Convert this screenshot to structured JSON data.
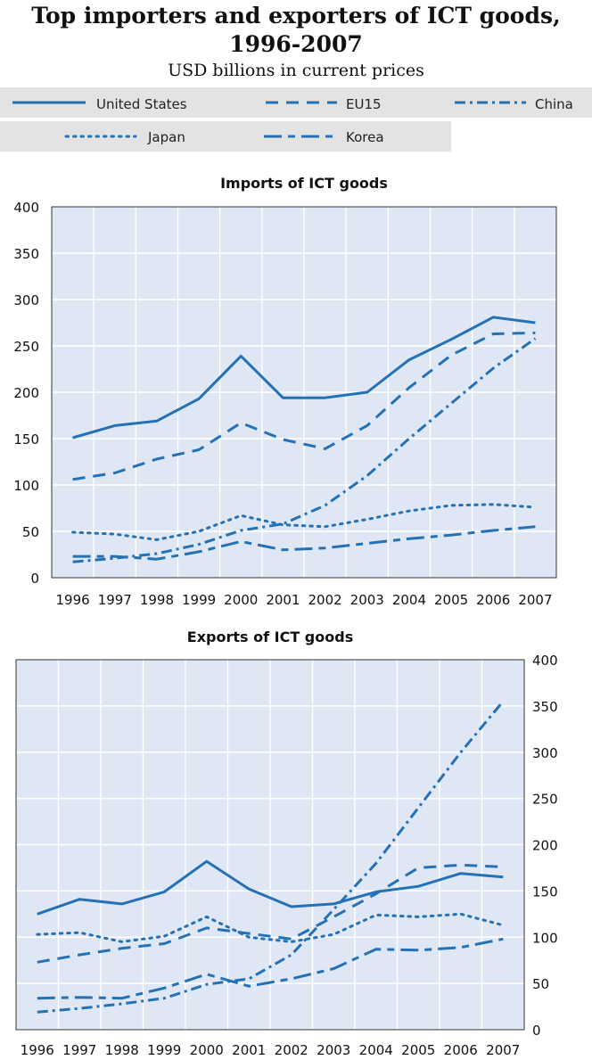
{
  "header": {
    "title_line1": "Top importers and exporters of ICT goods,",
    "title_line2": "1996-2007",
    "subtitle": "USD billions in current prices"
  },
  "style": {
    "series_color": "#2471b5",
    "plot_background": "#dfe7f5",
    "grid_color": "#ffffff",
    "legend_background": "#e3e3e3"
  },
  "legend": [
    {
      "label": "United States",
      "dash": "solid"
    },
    {
      "label": "EU15",
      "dash": "dash"
    },
    {
      "label": "China",
      "dash": "dashdot"
    },
    {
      "label": "Japan",
      "dash": "dot"
    },
    {
      "label": "Korea",
      "dash": "longdash"
    }
  ],
  "chart_data": [
    {
      "type": "line",
      "title": "Imports of ICT goods",
      "y_axis_side": "left",
      "ylim": [
        0,
        400
      ],
      "yticks": [
        0,
        50,
        100,
        150,
        200,
        250,
        300,
        350,
        400
      ],
      "grid": true,
      "categories": [
        "1996",
        "1997",
        "1998",
        "1999",
        "2000",
        "2001",
        "2002",
        "2003",
        "2004",
        "2005",
        "2006",
        "2007"
      ],
      "series": [
        {
          "name": "United States",
          "dash": "solid",
          "values": [
            151,
            164,
            169,
            193,
            239,
            194,
            194,
            200,
            235,
            257,
            281,
            275
          ]
        },
        {
          "name": "EU15",
          "dash": "dash",
          "values": [
            106,
            113,
            128,
            138,
            167,
            149,
            139,
            164,
            205,
            240,
            263,
            264
          ]
        },
        {
          "name": "China",
          "dash": "dashdot",
          "values": [
            17,
            21,
            26,
            36,
            51,
            58,
            78,
            110,
            150,
            188,
            226,
            258
          ]
        },
        {
          "name": "Japan",
          "dash": "dot",
          "values": [
            49,
            47,
            41,
            50,
            67,
            57,
            55,
            63,
            72,
            78,
            79,
            76
          ]
        },
        {
          "name": "Korea",
          "dash": "longdash",
          "values": [
            23,
            23,
            20,
            28,
            39,
            30,
            32,
            37,
            42,
            46,
            51,
            55
          ]
        }
      ]
    },
    {
      "type": "line",
      "title": "Exports of ICT goods",
      "y_axis_side": "right",
      "ylim": [
        0,
        400
      ],
      "yticks": [
        0,
        50,
        100,
        150,
        200,
        250,
        300,
        350,
        400
      ],
      "grid": true,
      "categories": [
        "1996",
        "1997",
        "1998",
        "1999",
        "2000",
        "2001",
        "2002",
        "2003",
        "2004",
        "2005",
        "2006",
        "2007"
      ],
      "series": [
        {
          "name": "United States",
          "dash": "solid",
          "values": [
            125,
            141,
            136,
            149,
            182,
            152,
            133,
            136,
            149,
            155,
            169,
            165
          ]
        },
        {
          "name": "EU15",
          "dash": "dash",
          "values": [
            73,
            81,
            88,
            93,
            110,
            104,
            98,
            122,
            147,
            175,
            178,
            176
          ]
        },
        {
          "name": "China",
          "dash": "dashdot",
          "values": [
            19,
            23,
            28,
            34,
            49,
            55,
            81,
            130,
            180,
            240,
            300,
            355
          ]
        },
        {
          "name": "Japan",
          "dash": "dot",
          "values": [
            103,
            105,
            95,
            101,
            122,
            100,
            95,
            103,
            124,
            122,
            125,
            113
          ]
        },
        {
          "name": "Korea",
          "dash": "longdash",
          "values": [
            34,
            35,
            34,
            45,
            60,
            47,
            55,
            66,
            87,
            86,
            89,
            98
          ]
        }
      ]
    }
  ]
}
